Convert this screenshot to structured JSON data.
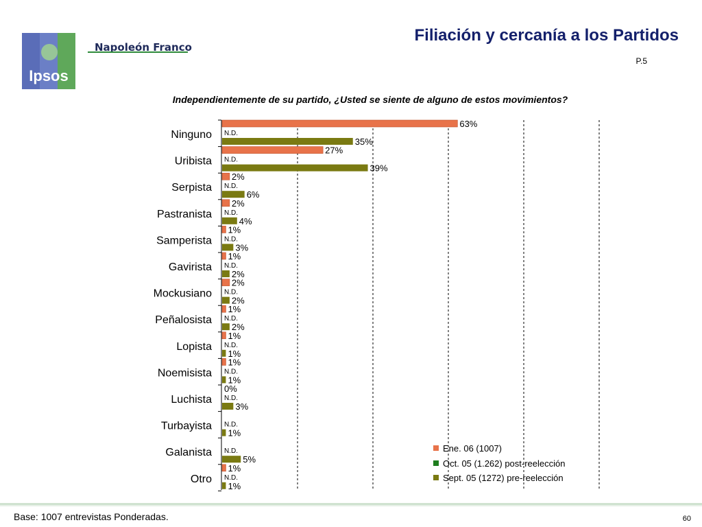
{
  "header": {
    "title": "Filiación y cercanía a los Partidos",
    "page_ref": "P.5",
    "brand_name": "Napoleón Franco",
    "logo_text": "Ipsos"
  },
  "question": "Independientemente de su partido, ¿Usted se siente de alguno de estos movimientos?",
  "footer": {
    "base_note": "Base: 1007 entrevistas Ponderadas.",
    "slide_number": "60"
  },
  "colors": {
    "series_ene": "#e8734a",
    "series_oct": "#1e7e1e",
    "series_sept": "#7a7a12",
    "title": "#14206b"
  },
  "chart_data": {
    "type": "bar",
    "orientation": "horizontal",
    "categories": [
      "Ninguno",
      "Uribista",
      "Serpista",
      "Pastranista",
      "Samperista",
      "Gavirista",
      "Mockusiano",
      "Peñalosista",
      "Lopista",
      "Noemisista",
      "Luchista",
      "Turbayista",
      "Galanista",
      "Otro"
    ],
    "series": [
      {
        "name": "Ene. 06 (1007)",
        "values": [
          63,
          27,
          2,
          2,
          1,
          1,
          2,
          1,
          1,
          1,
          0,
          null,
          null,
          1
        ],
        "labels": [
          "63%",
          "27%",
          "2%",
          "2%",
          "1%",
          "1%",
          "2%",
          "1%",
          "1%",
          "1%",
          "0%",
          "",
          "",
          "1%"
        ]
      },
      {
        "name": "Oct. 05 (1.262) post-reelección",
        "values": [
          null,
          null,
          null,
          null,
          null,
          null,
          null,
          null,
          null,
          null,
          null,
          null,
          null,
          null
        ],
        "labels": [
          "N.D.",
          "N.D.",
          "N.D.",
          "N.D.",
          "N.D.",
          "N.D.",
          "N.D.",
          "N.D.",
          "N.D.",
          "N.D.",
          "N.D.",
          "N.D.",
          "N.D.",
          "N.D."
        ]
      },
      {
        "name": "Sept. 05 (1272) pre-reelección",
        "values": [
          35,
          39,
          6,
          4,
          3,
          2,
          2,
          2,
          1,
          1,
          3,
          1,
          5,
          1
        ],
        "labels": [
          "35%",
          "39%",
          "6%",
          "4%",
          "3%",
          "2%",
          "2%",
          "2%",
          "1%",
          "1%",
          "3%",
          "1%",
          "5%",
          "1%"
        ]
      }
    ],
    "xlim": [
      0,
      100
    ],
    "grid": true,
    "legend_position": "bottom-right"
  }
}
